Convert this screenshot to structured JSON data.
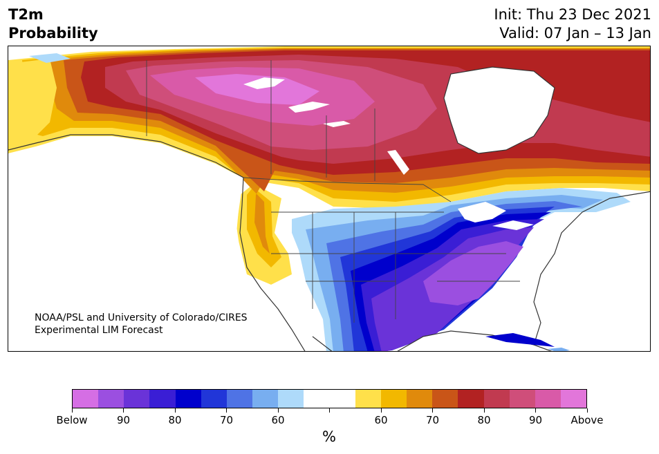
{
  "header": {
    "variable": "T2m",
    "quantity": "Probability",
    "init": "Init: Thu 23 Dec 2021",
    "valid": "Valid: 07 Jan – 13 Jan"
  },
  "map": {
    "credit_line1": "NOAA/PSL and University of Colorado/CIRES",
    "credit_line2": "Experimental LIM Forecast",
    "region": "North America"
  },
  "colorbar": {
    "colors": [
      "#d56ee4",
      "#9b4fe0",
      "#6a33d8",
      "#3a1ed5",
      "#0000cc",
      "#2136d8",
      "#4f73e5",
      "#78aef0",
      "#aedafa",
      "#ffffff",
      "#ffffff",
      "#ffe04a",
      "#f2b800",
      "#e08a0c",
      "#c95518",
      "#b22222",
      "#c13a50",
      "#cf4e7a",
      "#d95aa8",
      "#e276da"
    ],
    "tick_labels": [
      "Below",
      "90",
      "80",
      "70",
      "60",
      "",
      "60",
      "70",
      "80",
      "90",
      "Above"
    ],
    "unit": "%"
  }
}
